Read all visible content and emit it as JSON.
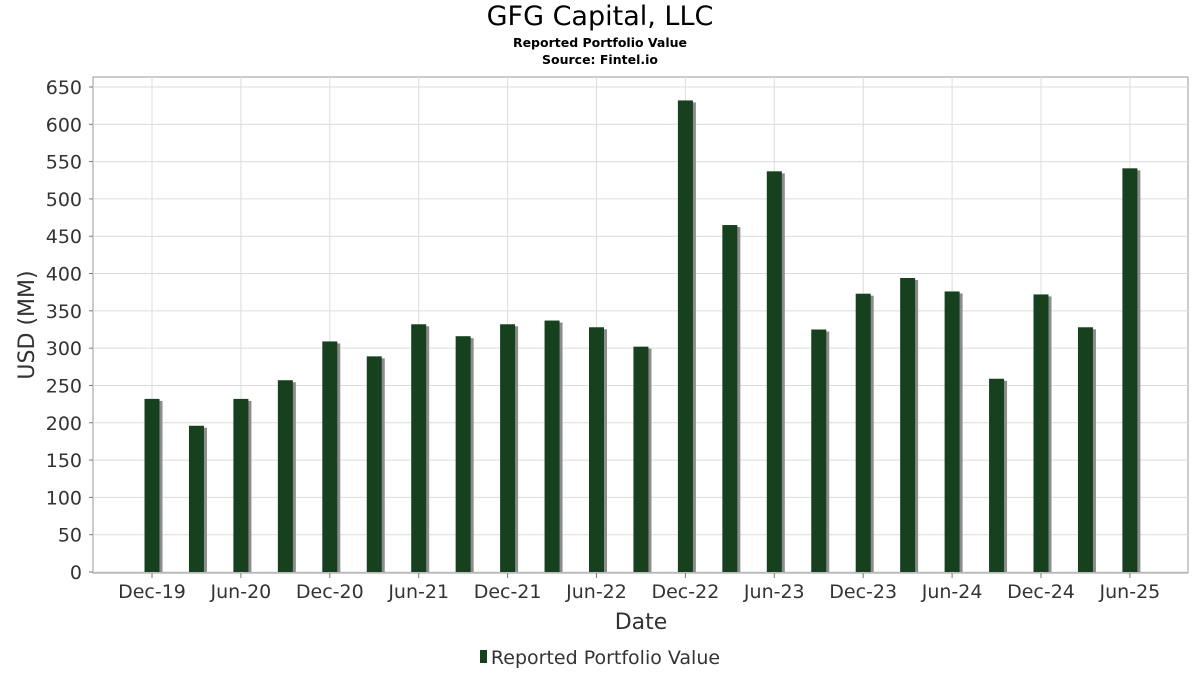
{
  "title": "GFG Capital, LLC",
  "subtitle": "Reported Portfolio Value",
  "source": "Source: Fintel.io",
  "colors": {
    "bar": "#17401f",
    "bar_shadow": "#8c8c8c",
    "grid": "#dcdcdc"
  },
  "legend": {
    "label": "Reported Portfolio Value"
  },
  "chart_data": {
    "type": "bar",
    "title": "GFG Capital, LLC",
    "subtitle": "Reported Portfolio Value",
    "xlabel": "Date",
    "ylabel": "USD (MM)",
    "ylim": [
      0,
      650
    ],
    "yticks": [
      0,
      50,
      100,
      150,
      200,
      250,
      300,
      350,
      400,
      450,
      500,
      550,
      600,
      650
    ],
    "xtick_labels": [
      "Dec-19",
      "Jun-20",
      "Dec-20",
      "Jun-21",
      "Dec-21",
      "Jun-22",
      "Dec-22",
      "Jun-23",
      "Dec-23",
      "Jun-24",
      "Dec-24",
      "Jun-25"
    ],
    "grid": true,
    "legend_position": "bottom",
    "categories": [
      "Dec-19",
      "Mar-20",
      "Jun-20",
      "Sep-20",
      "Dec-20",
      "Mar-21",
      "Jun-21",
      "Sep-21",
      "Dec-21",
      "Mar-22",
      "Jun-22",
      "Sep-22",
      "Dec-22",
      "Mar-23",
      "Jun-23",
      "Sep-23",
      "Dec-23",
      "Mar-24",
      "Jun-24",
      "Sep-24",
      "Dec-24",
      "Mar-25",
      "Jun-25"
    ],
    "series": [
      {
        "name": "Reported Portfolio Value",
        "values": [
          232,
          196,
          232,
          257,
          309,
          289,
          332,
          316,
          332,
          337,
          328,
          302,
          632,
          465,
          537,
          325,
          373,
          394,
          376,
          259,
          372,
          328,
          541
        ]
      }
    ]
  }
}
